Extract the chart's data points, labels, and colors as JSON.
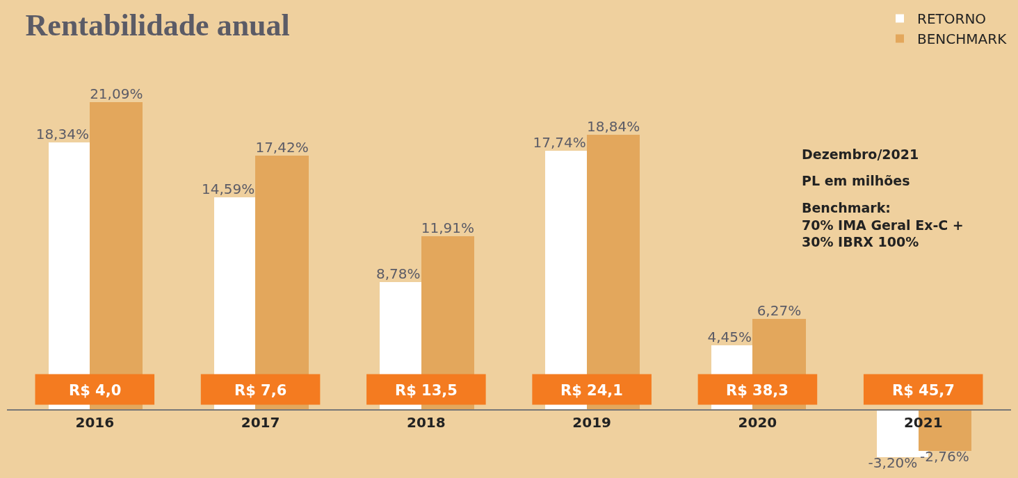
{
  "chart_data": {
    "type": "bar",
    "title": "Rentabilidade anual",
    "categories": [
      "2016",
      "2017",
      "2018",
      "2019",
      "2020",
      "2021"
    ],
    "series": [
      {
        "name": "RETORNO",
        "color": "#ffffff",
        "values": [
          18.34,
          14.59,
          8.78,
          17.74,
          4.45,
          -3.2
        ],
        "value_labels": [
          "18,34%",
          "14,59%",
          "8,78%",
          "17,74%",
          "4,45%",
          "-3,20%"
        ]
      },
      {
        "name": "BENCHMARK",
        "color": "#e3a75c",
        "values": [
          21.09,
          17.42,
          11.91,
          18.84,
          6.27,
          -2.76
        ],
        "value_labels": [
          "21,09%",
          "17,42%",
          "11,91%",
          "18,84%",
          "6,27%",
          "-2,76%"
        ]
      }
    ],
    "annotations": [
      "R$ 4,0",
      "R$ 7,6",
      "R$ 13,5",
      "R$ 24,1",
      "R$ 38,3",
      "R$ 45,7",
      "Dezembro/2021",
      "PL em milhões",
      "Benchmark:\n70% IMA Geral Ex-C +\n30% IBRX 100%"
    ],
    "grid": false,
    "legend": "top right"
  }
}
